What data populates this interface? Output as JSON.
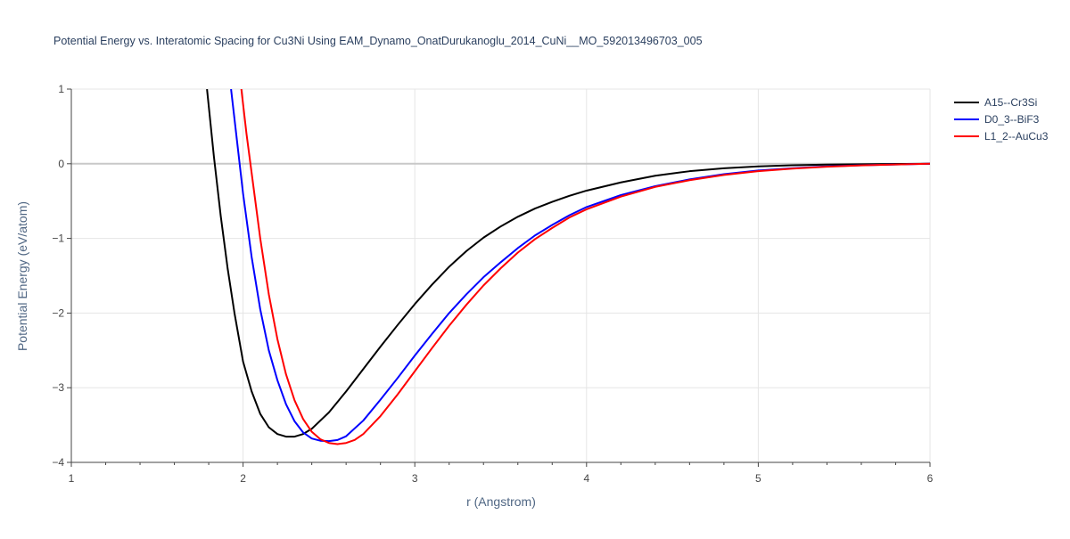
{
  "chart_data": {
    "type": "line",
    "title": "Potential Energy vs. Interatomic Spacing for Cu3Ni Using EAM_Dynamo_OnatDurukanoglu_2014_CuNi__MO_592013496703_005",
    "xlabel": "r (Angstrom)",
    "ylabel": "Potential Energy (eV/atom)",
    "xlim": [
      1,
      6
    ],
    "ylim": [
      -4,
      1
    ],
    "xticks": [
      1,
      2,
      3,
      4,
      5,
      6
    ],
    "yticks": [
      1,
      0,
      -1,
      -2,
      -3,
      -4
    ],
    "xtick_labels": [
      "1",
      "2",
      "3",
      "4",
      "5",
      "6"
    ],
    "ytick_labels": [
      "1",
      "0",
      "−1",
      "−2",
      "−3",
      "−4"
    ],
    "grid": true,
    "legend_position": "top-right",
    "series": [
      {
        "name": "A15--Cr3Si",
        "color": "#000000",
        "x": [
          1.79,
          1.83,
          1.87,
          1.91,
          1.95,
          2.0,
          2.05,
          2.1,
          2.15,
          2.2,
          2.25,
          2.3,
          2.35,
          2.4,
          2.5,
          2.6,
          2.7,
          2.8,
          2.9,
          3.0,
          3.1,
          3.2,
          3.3,
          3.4,
          3.5,
          3.6,
          3.7,
          3.8,
          3.9,
          4.0,
          4.2,
          4.4,
          4.6,
          4.8,
          5.0,
          5.2,
          5.4,
          5.6,
          5.8,
          6.0
        ],
        "y": [
          1.0,
          0.1,
          -0.7,
          -1.4,
          -2.0,
          -2.65,
          -3.05,
          -3.35,
          -3.53,
          -3.62,
          -3.655,
          -3.655,
          -3.62,
          -3.55,
          -3.33,
          -3.05,
          -2.75,
          -2.45,
          -2.16,
          -1.88,
          -1.62,
          -1.38,
          -1.17,
          -0.99,
          -0.84,
          -0.71,
          -0.6,
          -0.51,
          -0.43,
          -0.36,
          -0.25,
          -0.16,
          -0.1,
          -0.06,
          -0.035,
          -0.02,
          -0.012,
          -0.007,
          -0.003,
          0.0
        ]
      },
      {
        "name": "D0_3--BiF3",
        "color": "#0000ff",
        "x": [
          1.93,
          1.97,
          2.0,
          2.05,
          2.1,
          2.15,
          2.2,
          2.25,
          2.3,
          2.35,
          2.4,
          2.45,
          2.5,
          2.55,
          2.6,
          2.7,
          2.8,
          2.9,
          3.0,
          3.1,
          3.2,
          3.3,
          3.4,
          3.5,
          3.6,
          3.7,
          3.8,
          3.9,
          4.0,
          4.2,
          4.4,
          4.6,
          4.8,
          5.0,
          5.2,
          5.4,
          5.6,
          5.8,
          6.0
        ],
        "y": [
          1.0,
          0.2,
          -0.4,
          -1.25,
          -1.95,
          -2.5,
          -2.9,
          -3.22,
          -3.45,
          -3.6,
          -3.68,
          -3.71,
          -3.715,
          -3.7,
          -3.65,
          -3.44,
          -3.16,
          -2.87,
          -2.57,
          -2.28,
          -2.0,
          -1.75,
          -1.52,
          -1.32,
          -1.13,
          -0.96,
          -0.82,
          -0.69,
          -0.58,
          -0.42,
          -0.3,
          -0.21,
          -0.14,
          -0.09,
          -0.06,
          -0.035,
          -0.02,
          -0.01,
          0.0
        ]
      },
      {
        "name": "L1_2--AuCu3",
        "color": "#ff0000",
        "x": [
          1.99,
          2.02,
          2.06,
          2.1,
          2.15,
          2.2,
          2.25,
          2.3,
          2.35,
          2.4,
          2.45,
          2.5,
          2.55,
          2.6,
          2.65,
          2.7,
          2.8,
          2.9,
          3.0,
          3.1,
          3.2,
          3.3,
          3.4,
          3.5,
          3.6,
          3.7,
          3.8,
          3.9,
          4.0,
          4.2,
          4.4,
          4.6,
          4.8,
          5.0,
          5.2,
          5.4,
          5.6,
          5.8,
          6.0
        ],
        "y": [
          1.0,
          0.4,
          -0.3,
          -1.0,
          -1.75,
          -2.35,
          -2.82,
          -3.17,
          -3.42,
          -3.59,
          -3.69,
          -3.74,
          -3.755,
          -3.74,
          -3.7,
          -3.62,
          -3.38,
          -3.09,
          -2.78,
          -2.47,
          -2.17,
          -1.89,
          -1.63,
          -1.4,
          -1.19,
          -1.01,
          -0.86,
          -0.72,
          -0.61,
          -0.44,
          -0.31,
          -0.22,
          -0.15,
          -0.1,
          -0.065,
          -0.04,
          -0.022,
          -0.01,
          0.0
        ]
      }
    ]
  }
}
